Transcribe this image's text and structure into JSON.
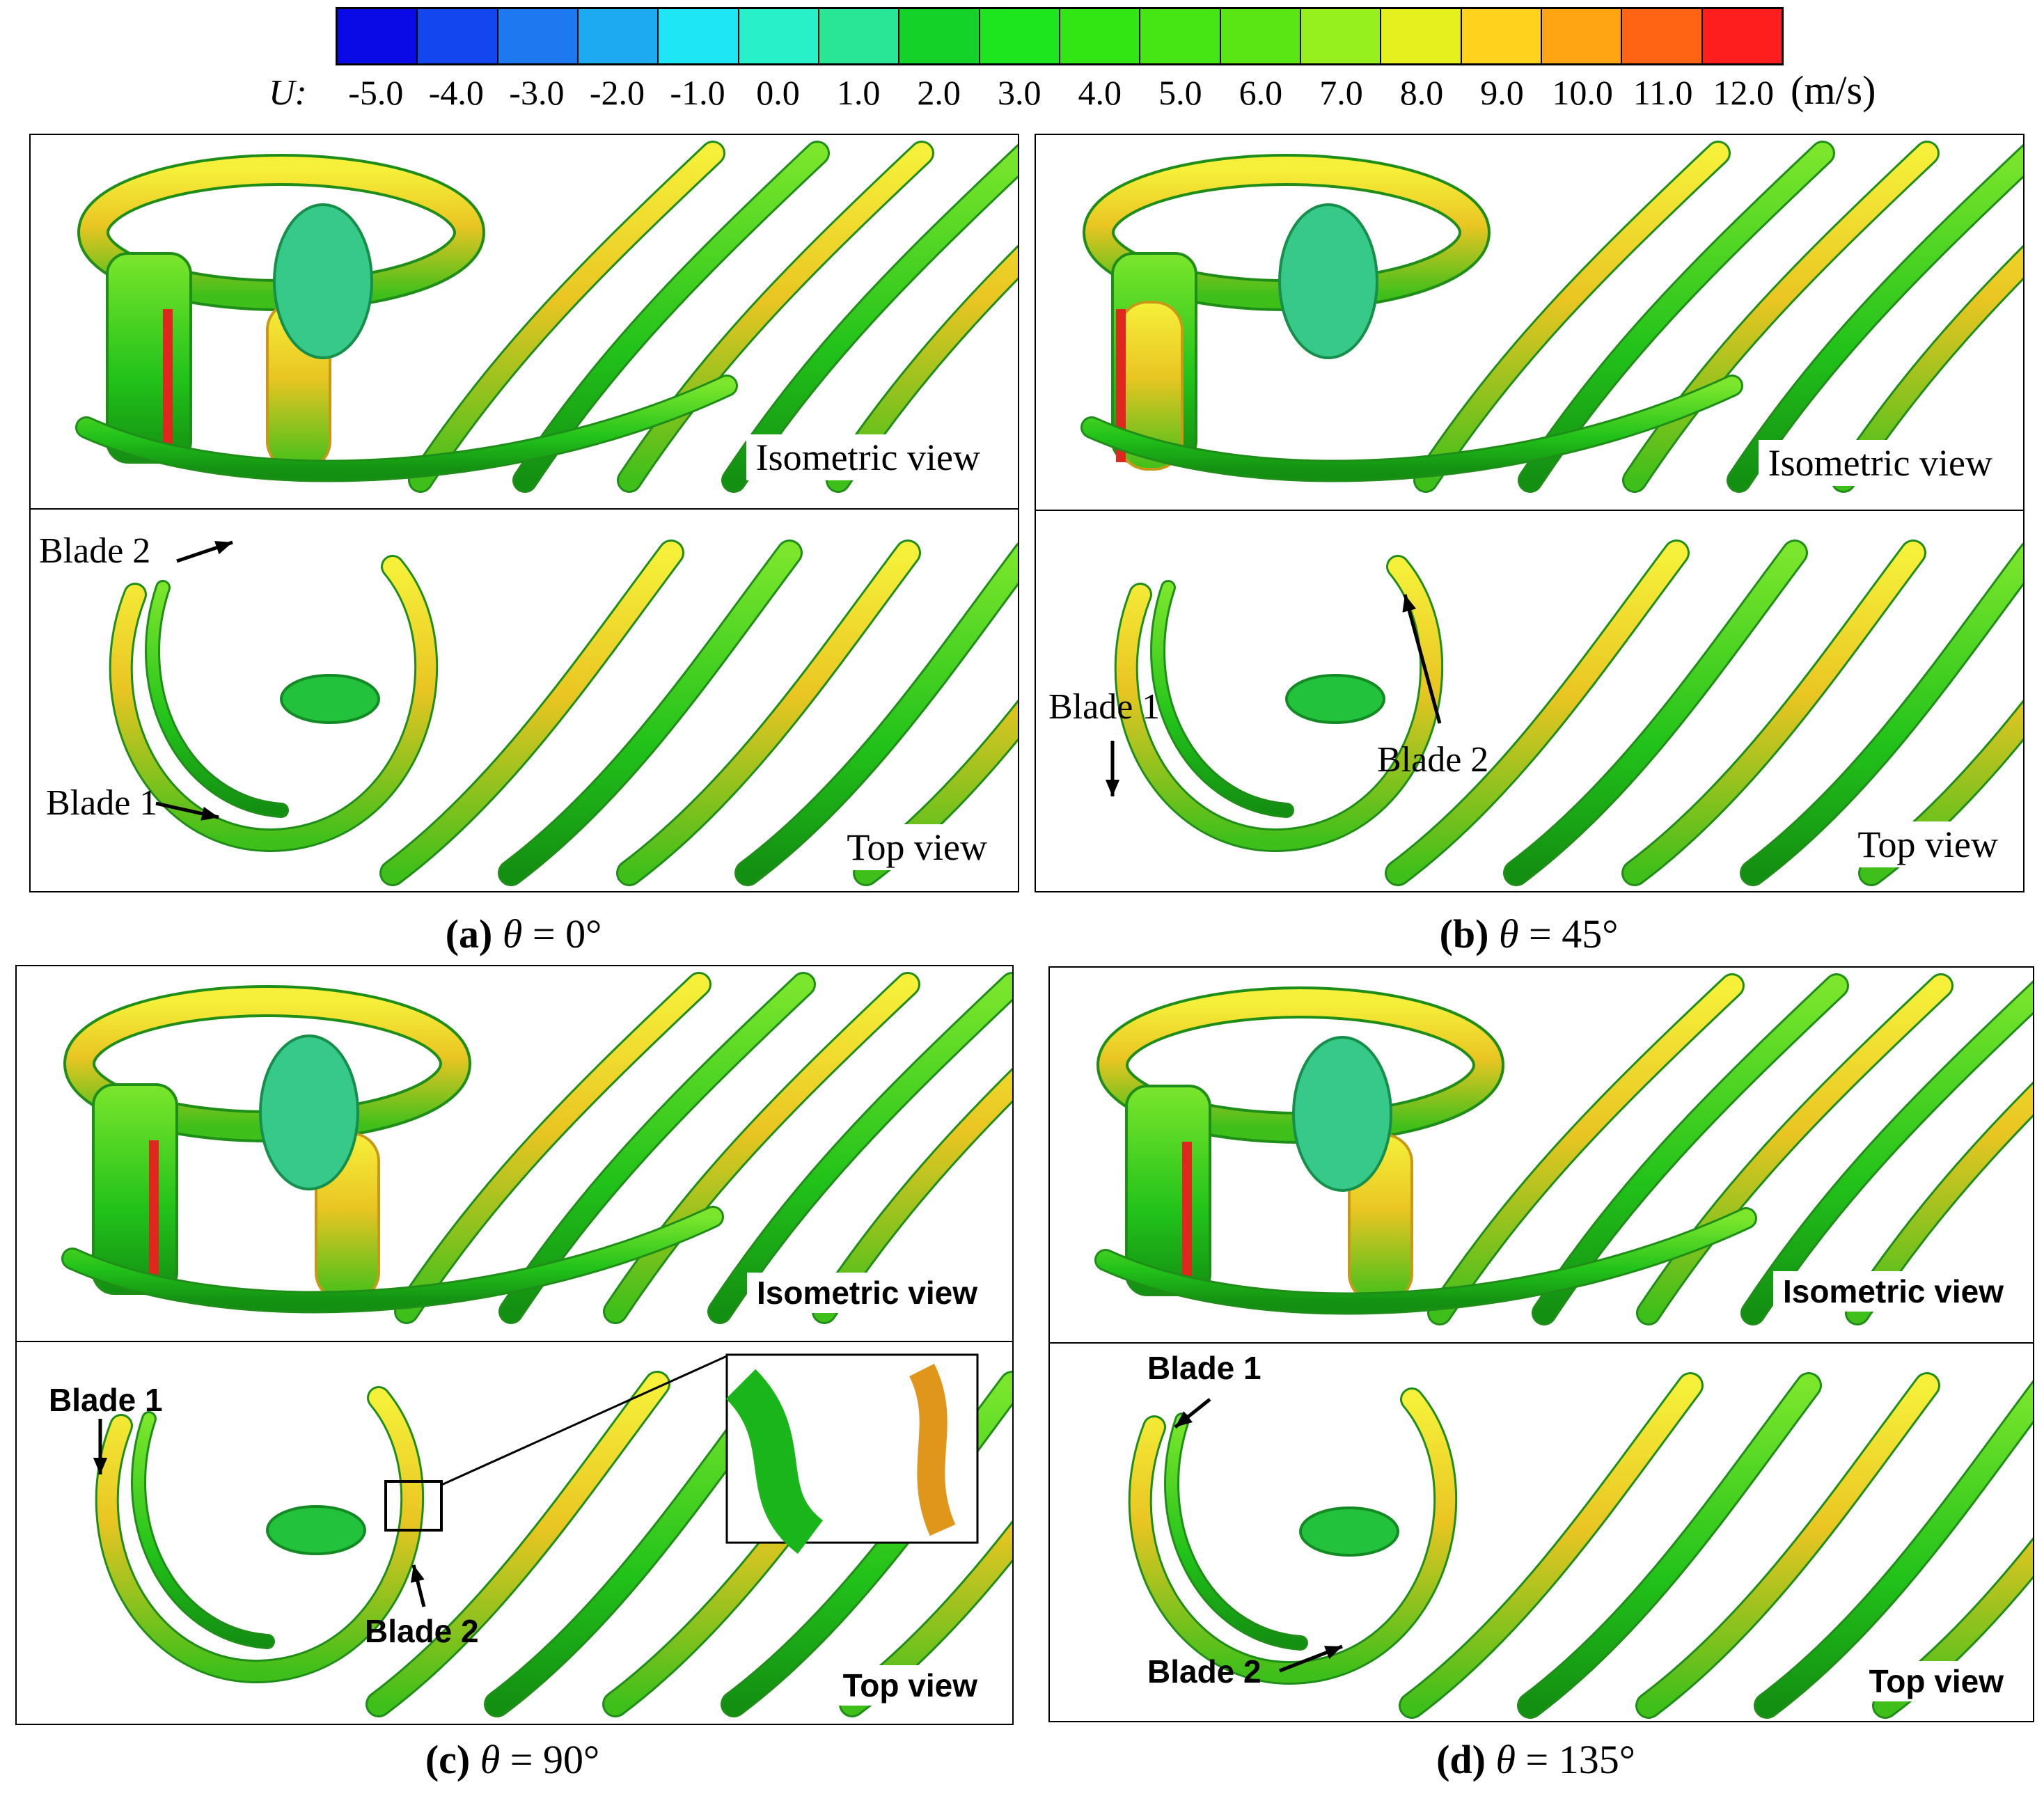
{
  "colorbar": {
    "variable": "U:",
    "unit": "(m/s)",
    "ticks": [
      "-5.0",
      "-4.0",
      "-3.0",
      "-2.0",
      "-1.0",
      "0.0",
      "1.0",
      "2.0",
      "3.0",
      "4.0",
      "5.0",
      "6.0",
      "7.0",
      "8.0",
      "9.0",
      "10.0",
      "11.0",
      "12.0"
    ],
    "colors": [
      "#0a0ae6",
      "#1446f0",
      "#1e78f0",
      "#1eaaf0",
      "#1ee6f5",
      "#28f0c8",
      "#28e696",
      "#14d228",
      "#1ee61e",
      "#32e614",
      "#46e614",
      "#5ae614",
      "#96f01e",
      "#e6f01e",
      "#ffd21e",
      "#ffa514",
      "#ff6414",
      "#ff1e1e"
    ]
  },
  "panels": [
    {
      "id": "a",
      "caption_letter": "(a)",
      "caption_symbol": "θ",
      "caption_value": " = 0°",
      "isometric_label": "Isometric view",
      "top_label": "Top view",
      "blade1": "Blade 1",
      "blade2": "Blade 2"
    },
    {
      "id": "b",
      "caption_letter": "(b)",
      "caption_symbol": "θ",
      "caption_value": " = 45°",
      "isometric_label": "Isometric view",
      "top_label": "Top view",
      "blade1": "Blade 1",
      "blade2": "Blade 2"
    },
    {
      "id": "c",
      "caption_letter": "(c)",
      "caption_symbol": "θ",
      "caption_value": " = 90°",
      "isometric_label": "Isometric view",
      "top_label": "Top view",
      "blade1": "Blade 1",
      "blade2": "Blade 2"
    },
    {
      "id": "d",
      "caption_letter": "(d)",
      "caption_symbol": "θ",
      "caption_value": " = 135°",
      "isometric_label": "Isometric view",
      "top_label": "Top view",
      "blade1": "Blade 1",
      "blade2": "Blade 2"
    }
  ]
}
